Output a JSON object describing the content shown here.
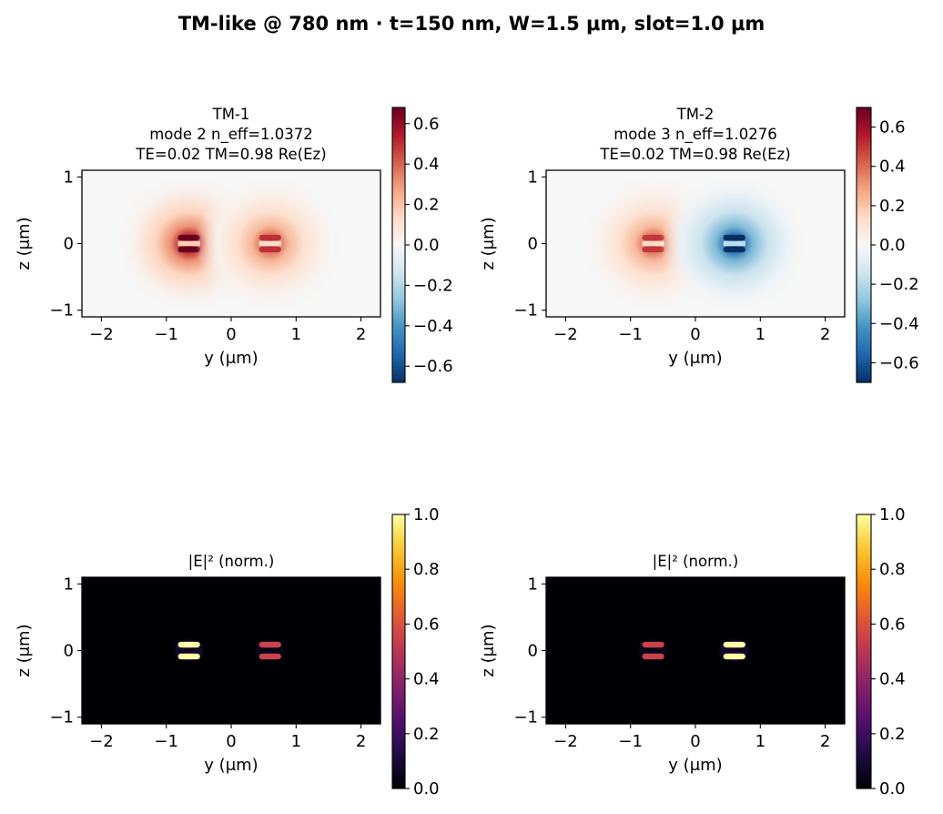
{
  "figure": {
    "title": "TM-like @ 780 nm · t=150 nm, W=1.5 μm, slot=1.0 μm"
  },
  "chart_data": [
    {
      "type": "heatmap",
      "title_lines": [
        "TM-1",
        "mode 2  n_eff=1.0372",
        "TE=0.02  TM=0.98  Re(Ez)"
      ],
      "xlabel": "y (μm)",
      "ylabel": "z (μm)",
      "xlim": [
        -2.3,
        2.3
      ],
      "ylim": [
        -1.1,
        1.1
      ],
      "xticks": [
        -2,
        -1,
        0,
        1,
        2
      ],
      "yticks": [
        -1,
        0,
        1
      ],
      "colormap": "RdBu_r",
      "colorbar": {
        "min": -0.68,
        "max": 0.68,
        "ticks": [
          -0.6,
          -0.4,
          -0.2,
          0.0,
          0.2,
          0.4,
          0.6
        ]
      },
      "field": "Re(Ez)",
      "lobes": [
        {
          "y": -0.65,
          "amp": 0.68
        },
        {
          "y": 0.6,
          "amp": 0.5
        }
      ]
    },
    {
      "type": "heatmap",
      "title_lines": [
        "TM-2",
        "mode 3  n_eff=1.0276",
        "TE=0.02  TM=0.98  Re(Ez)"
      ],
      "xlabel": "y (μm)",
      "ylabel": "z (μm)",
      "xlim": [
        -2.3,
        2.3
      ],
      "ylim": [
        -1.1,
        1.1
      ],
      "xticks": [
        -2,
        -1,
        0,
        1,
        2
      ],
      "yticks": [
        -1,
        0,
        1
      ],
      "colormap": "RdBu_r",
      "colorbar": {
        "min": -0.7,
        "max": 0.7,
        "ticks": [
          -0.6,
          -0.4,
          -0.2,
          0.0,
          0.2,
          0.4,
          0.6
        ]
      },
      "field": "Re(Ez)",
      "lobes": [
        {
          "y": -0.65,
          "amp": 0.5
        },
        {
          "y": 0.6,
          "amp": -0.7
        }
      ]
    },
    {
      "type": "heatmap",
      "title": "|E|² (norm.)",
      "xlabel": "y (μm)",
      "ylabel": "z (μm)",
      "xlim": [
        -2.3,
        2.3
      ],
      "ylim": [
        -1.1,
        1.1
      ],
      "xticks": [
        -2,
        -1,
        0,
        1,
        2
      ],
      "yticks": [
        -1,
        0,
        1
      ],
      "colormap": "inferno",
      "colorbar": {
        "min": 0.0,
        "max": 1.0,
        "ticks": [
          0.0,
          0.2,
          0.4,
          0.6,
          0.8,
          1.0
        ]
      },
      "field": "|E|^2",
      "lobes": [
        {
          "y": -0.65,
          "amp": 1.0
        },
        {
          "y": 0.6,
          "amp": 0.55
        }
      ]
    },
    {
      "type": "heatmap",
      "title": "|E|² (norm.)",
      "xlabel": "y (μm)",
      "ylabel": "z (μm)",
      "xlim": [
        -2.3,
        2.3
      ],
      "ylim": [
        -1.1,
        1.1
      ],
      "xticks": [
        -2,
        -1,
        0,
        1,
        2
      ],
      "yticks": [
        -1,
        0,
        1
      ],
      "colormap": "inferno",
      "colorbar": {
        "min": 0.0,
        "max": 1.0,
        "ticks": [
          0.0,
          0.2,
          0.4,
          0.6,
          0.8,
          1.0
        ]
      },
      "field": "|E|^2",
      "lobes": [
        {
          "y": -0.65,
          "amp": 0.55
        },
        {
          "y": 0.6,
          "amp": 1.0
        }
      ]
    }
  ]
}
